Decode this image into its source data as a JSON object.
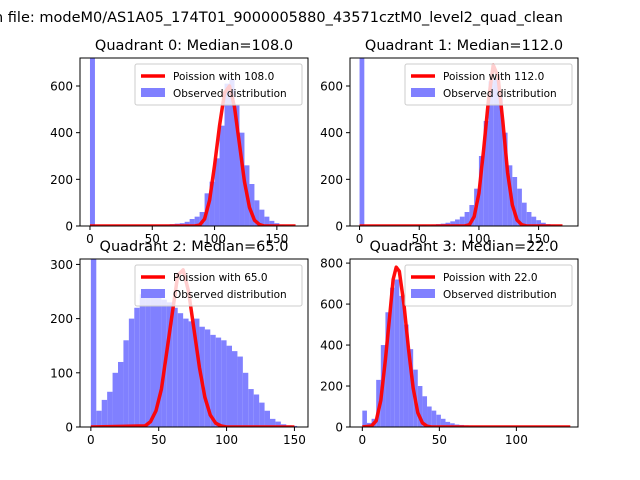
{
  "figure": {
    "suptitle": "n file: modeM0/AS1A05_174T01_9000005880_43571cztM0_level2_quad_clean"
  },
  "chart_data": [
    {
      "type": "bar",
      "title": "Quadrant 0: Median=108.0",
      "xlim": [
        -8,
        175
      ],
      "ylim": [
        0,
        720
      ],
      "xticks": [
        0,
        50,
        100,
        150
      ],
      "yticks": [
        0,
        200,
        400,
        600
      ],
      "legend_position": "upper right",
      "bin_width": 4,
      "hist": {
        "name": "Observed distribution",
        "color": "#8080ff",
        "bins": [
          [
            0,
            720
          ],
          [
            40,
            2
          ],
          [
            48,
            3
          ],
          [
            52,
            4
          ],
          [
            56,
            5
          ],
          [
            60,
            6
          ],
          [
            64,
            8
          ],
          [
            68,
            10
          ],
          [
            72,
            12
          ],
          [
            76,
            18
          ],
          [
            80,
            30
          ],
          [
            84,
            40
          ],
          [
            88,
            60
          ],
          [
            92,
            140
          ],
          [
            96,
            190
          ],
          [
            100,
            290
          ],
          [
            104,
            430
          ],
          [
            108,
            610
          ],
          [
            112,
            630
          ],
          [
            116,
            520
          ],
          [
            120,
            400
          ],
          [
            124,
            260
          ],
          [
            128,
            180
          ],
          [
            132,
            110
          ],
          [
            136,
            70
          ],
          [
            140,
            40
          ],
          [
            144,
            22
          ],
          [
            148,
            12
          ],
          [
            152,
            6
          ],
          [
            156,
            3
          ],
          [
            160,
            2
          ]
        ]
      },
      "line": {
        "name": "Poission with 108.0",
        "color": "#ff0000",
        "points": [
          [
            0,
            0
          ],
          [
            84,
            0
          ],
          [
            88,
            4
          ],
          [
            92,
            30
          ],
          [
            96,
            110
          ],
          [
            100,
            260
          ],
          [
            104,
            430
          ],
          [
            108,
            570
          ],
          [
            112,
            600
          ],
          [
            116,
            510
          ],
          [
            120,
            350
          ],
          [
            124,
            190
          ],
          [
            128,
            80
          ],
          [
            132,
            25
          ],
          [
            136,
            6
          ],
          [
            140,
            0
          ],
          [
            165,
            0
          ]
        ]
      }
    },
    {
      "type": "bar",
      "title": "Quadrant 1: Median=112.0",
      "xlim": [
        -8,
        183
      ],
      "ylim": [
        0,
        720
      ],
      "xticks": [
        0,
        50,
        100,
        150
      ],
      "yticks": [
        0,
        200,
        400,
        600
      ],
      "legend_position": "upper right",
      "bin_width": 4,
      "hist": {
        "name": "Observed distribution",
        "color": "#8080ff",
        "bins": [
          [
            0,
            720
          ],
          [
            44,
            2
          ],
          [
            52,
            4
          ],
          [
            60,
            6
          ],
          [
            64,
            8
          ],
          [
            68,
            10
          ],
          [
            72,
            14
          ],
          [
            76,
            20
          ],
          [
            80,
            28
          ],
          [
            84,
            40
          ],
          [
            88,
            60
          ],
          [
            92,
            90
          ],
          [
            96,
            160
          ],
          [
            100,
            300
          ],
          [
            104,
            450
          ],
          [
            108,
            620
          ],
          [
            112,
            630
          ],
          [
            116,
            560
          ],
          [
            120,
            400
          ],
          [
            124,
            260
          ],
          [
            128,
            210
          ],
          [
            132,
            160
          ],
          [
            136,
            100
          ],
          [
            140,
            60
          ],
          [
            144,
            40
          ],
          [
            148,
            25
          ],
          [
            152,
            14
          ],
          [
            156,
            8
          ],
          [
            160,
            5
          ],
          [
            164,
            3
          ],
          [
            168,
            2
          ]
        ]
      },
      "line": {
        "name": "Poission with 112.0",
        "color": "#ff0000",
        "points": [
          [
            0,
            0
          ],
          [
            88,
            0
          ],
          [
            92,
            5
          ],
          [
            96,
            40
          ],
          [
            100,
            140
          ],
          [
            104,
            330
          ],
          [
            108,
            540
          ],
          [
            112,
            690
          ],
          [
            116,
            640
          ],
          [
            120,
            450
          ],
          [
            124,
            230
          ],
          [
            128,
            90
          ],
          [
            132,
            25
          ],
          [
            136,
            5
          ],
          [
            140,
            0
          ],
          [
            170,
            0
          ]
        ]
      }
    },
    {
      "type": "bar",
      "title": "Quadrant 2: Median=65.0",
      "xlim": [
        -8,
        160
      ],
      "ylim": [
        0,
        310
      ],
      "xticks": [
        0,
        50,
        100,
        150
      ],
      "yticks": [
        0,
        100,
        200,
        300
      ],
      "legend_position": "upper right",
      "bin_width": 4,
      "hist": {
        "name": "Observed distribution",
        "color": "#8080ff",
        "bins": [
          [
            0,
            310
          ],
          [
            4,
            30
          ],
          [
            8,
            50
          ],
          [
            12,
            65
          ],
          [
            16,
            100
          ],
          [
            20,
            120
          ],
          [
            24,
            160
          ],
          [
            28,
            200
          ],
          [
            32,
            220
          ],
          [
            36,
            245
          ],
          [
            40,
            255
          ],
          [
            44,
            250
          ],
          [
            48,
            245
          ],
          [
            52,
            235
          ],
          [
            56,
            230
          ],
          [
            60,
            220
          ],
          [
            64,
            210
          ],
          [
            68,
            200
          ],
          [
            72,
            195
          ],
          [
            76,
            200
          ],
          [
            80,
            185
          ],
          [
            84,
            180
          ],
          [
            88,
            170
          ],
          [
            92,
            165
          ],
          [
            96,
            160
          ],
          [
            100,
            150
          ],
          [
            104,
            140
          ],
          [
            108,
            130
          ],
          [
            112,
            100
          ],
          [
            116,
            70
          ],
          [
            120,
            60
          ],
          [
            124,
            45
          ],
          [
            128,
            30
          ],
          [
            132,
            15
          ],
          [
            136,
            10
          ],
          [
            140,
            5
          ],
          [
            144,
            3
          ],
          [
            148,
            2
          ]
        ]
      },
      "line": {
        "name": "Poission with 65.0",
        "color": "#ff0000",
        "points": [
          [
            0,
            0
          ],
          [
            40,
            2
          ],
          [
            44,
            10
          ],
          [
            48,
            30
          ],
          [
            52,
            70
          ],
          [
            56,
            140
          ],
          [
            60,
            210
          ],
          [
            64,
            280
          ],
          [
            68,
            290
          ],
          [
            72,
            250
          ],
          [
            76,
            180
          ],
          [
            80,
            110
          ],
          [
            84,
            55
          ],
          [
            88,
            22
          ],
          [
            92,
            7
          ],
          [
            96,
            2
          ],
          [
            100,
            0
          ],
          [
            150,
            0
          ]
        ]
      }
    },
    {
      "type": "bar",
      "title": "Quadrant 3: Median=22.0",
      "xlim": [
        -8,
        140
      ],
      "ylim": [
        0,
        820
      ],
      "xticks": [
        0,
        50,
        100
      ],
      "yticks": [
        0,
        200,
        400,
        600,
        800
      ],
      "legend_position": "upper right",
      "bin_width": 3,
      "hist": {
        "name": "Observed distribution",
        "color": "#8080ff",
        "bins": [
          [
            0,
            80
          ],
          [
            3,
            20
          ],
          [
            6,
            40
          ],
          [
            9,
            230
          ],
          [
            12,
            400
          ],
          [
            15,
            560
          ],
          [
            18,
            680
          ],
          [
            21,
            720
          ],
          [
            24,
            640
          ],
          [
            27,
            500
          ],
          [
            30,
            380
          ],
          [
            33,
            280
          ],
          [
            36,
            200
          ],
          [
            39,
            150
          ],
          [
            42,
            100
          ],
          [
            45,
            80
          ],
          [
            48,
            60
          ],
          [
            51,
            40
          ],
          [
            54,
            25
          ],
          [
            57,
            18
          ],
          [
            60,
            12
          ],
          [
            63,
            10
          ],
          [
            66,
            8
          ],
          [
            69,
            6
          ],
          [
            72,
            5
          ],
          [
            75,
            4
          ],
          [
            78,
            3
          ],
          [
            81,
            2
          ],
          [
            84,
            2
          ],
          [
            87,
            2
          ]
        ]
      },
      "line": {
        "name": "Poission with 22.0",
        "color": "#ff0000",
        "points": [
          [
            0,
            0
          ],
          [
            6,
            5
          ],
          [
            9,
            30
          ],
          [
            12,
            130
          ],
          [
            15,
            330
          ],
          [
            18,
            560
          ],
          [
            20,
            720
          ],
          [
            22,
            780
          ],
          [
            24,
            760
          ],
          [
            27,
            600
          ],
          [
            30,
            380
          ],
          [
            33,
            190
          ],
          [
            36,
            70
          ],
          [
            39,
            20
          ],
          [
            42,
            4
          ],
          [
            45,
            0
          ],
          [
            135,
            0
          ]
        ]
      }
    }
  ]
}
